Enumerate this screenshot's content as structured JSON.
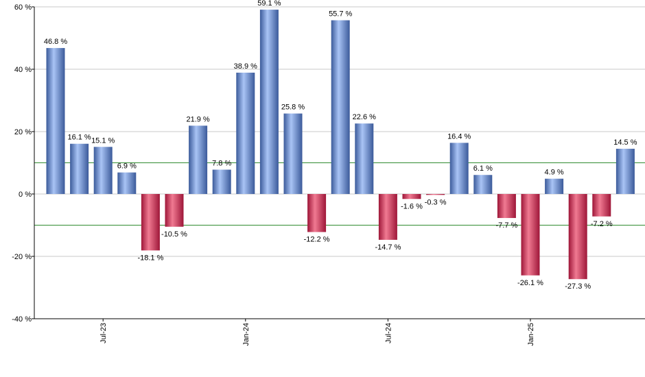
{
  "chart_data": {
    "type": "bar",
    "title": "",
    "xlabel": "",
    "ylabel": "",
    "ylim": [
      -40,
      60
    ],
    "y_ticks": [
      -40,
      -20,
      0,
      20,
      40,
      60
    ],
    "y_tick_suffix": " %",
    "x_tick_labels": [
      {
        "label": "Jul-23",
        "index": 2
      },
      {
        "label": "Jan-24",
        "index": 8
      },
      {
        "label": "Jul-24",
        "index": 14
      },
      {
        "label": "Jan-25",
        "index": 20
      }
    ],
    "grid": true,
    "reference_lines": [
      10,
      -10
    ],
    "values": [
      46.8,
      16.1,
      15.1,
      6.9,
      -18.1,
      -10.5,
      21.9,
      7.8,
      38.9,
      59.1,
      25.8,
      -12.2,
      55.7,
      22.6,
      -14.7,
      -1.6,
      -0.3,
      16.4,
      6.1,
      -7.7,
      -26.1,
      4.9,
      -27.3,
      -7.2,
      14.5
    ],
    "data_labels": [
      "46.8 %",
      "16.1 %",
      "15.1 %",
      "6.9 %",
      "-18.1 %",
      "-10.5 %",
      "21.9 %",
      "7.8 %",
      "38.9 %",
      "59.1 %",
      "25.8 %",
      "-12.2 %",
      "55.7 %",
      "22.6 %",
      "-14.7 %",
      "-1.6 %",
      "-0.3 %",
      "16.4 %",
      "6.1 %",
      "-7.7 %",
      "-26.1 %",
      "4.9 %",
      "-27.3 %",
      "-7.2 %",
      "14.5 %"
    ],
    "colors": {
      "positive_light": "#a9c4f5",
      "positive_dark": "#3b5a9a",
      "negative_light": "#f07a92",
      "negative_dark": "#9e1638",
      "grid": "#c8c8c8",
      "reference_line": "#2e8b2e",
      "axis": "#000000"
    }
  }
}
